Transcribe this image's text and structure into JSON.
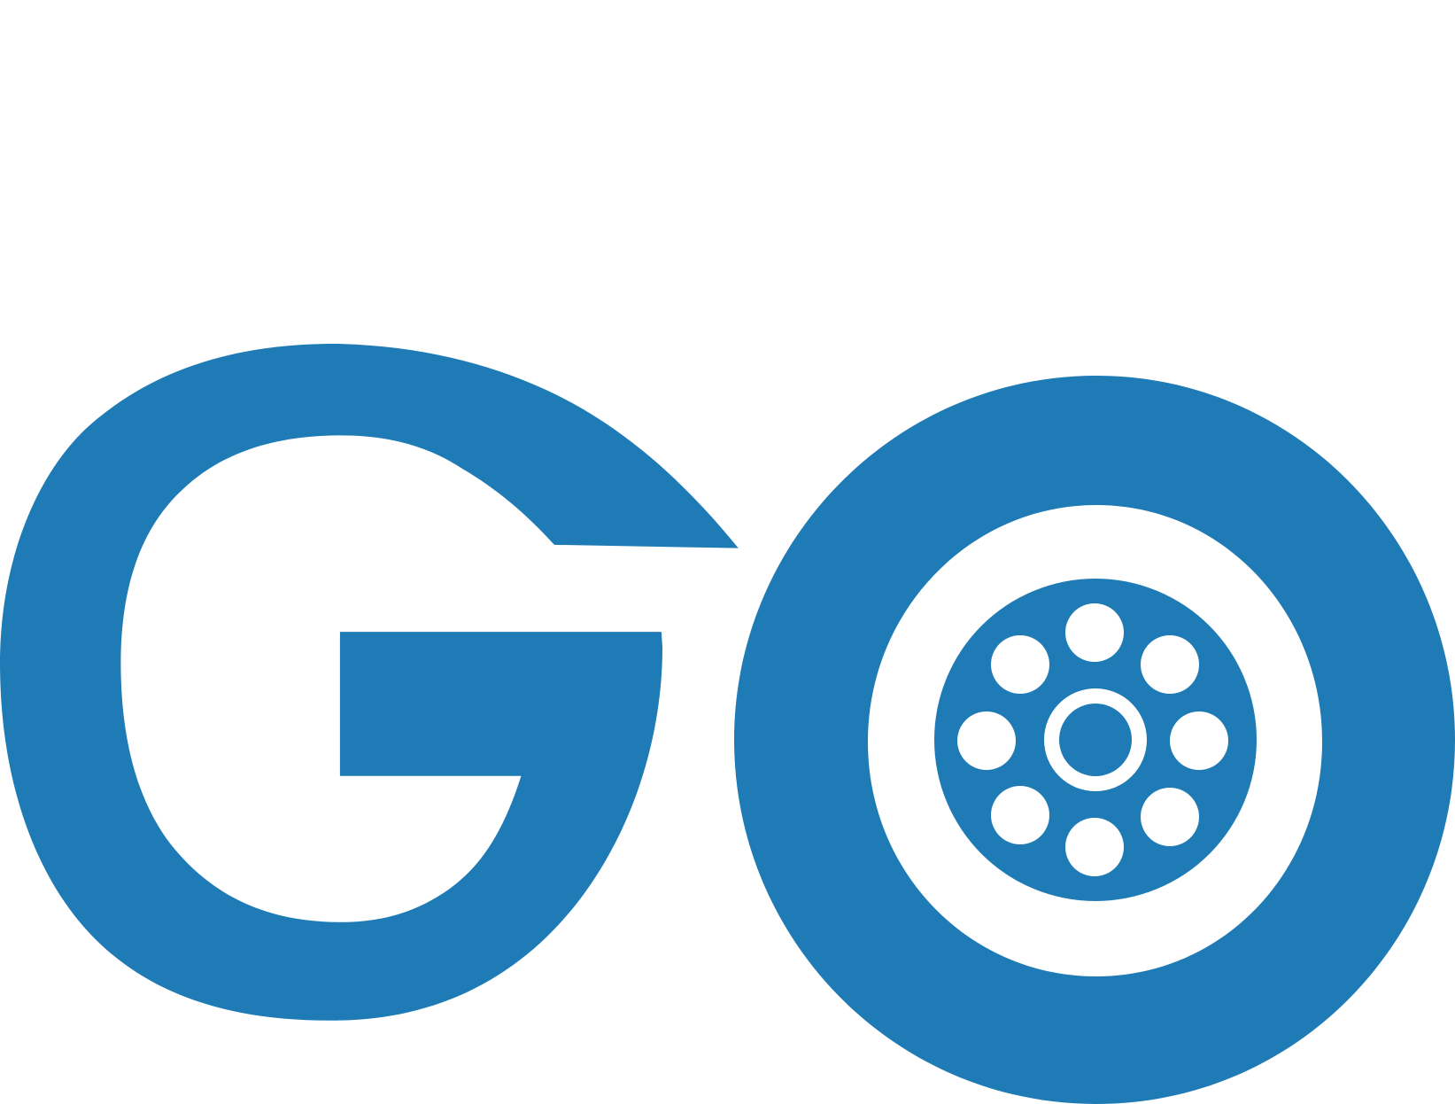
{
  "logo": {
    "lettering": "GO",
    "brand_color": "#1f7bb5",
    "background_color": "#ffffff",
    "wheel_icon": "film-reel-icon"
  }
}
